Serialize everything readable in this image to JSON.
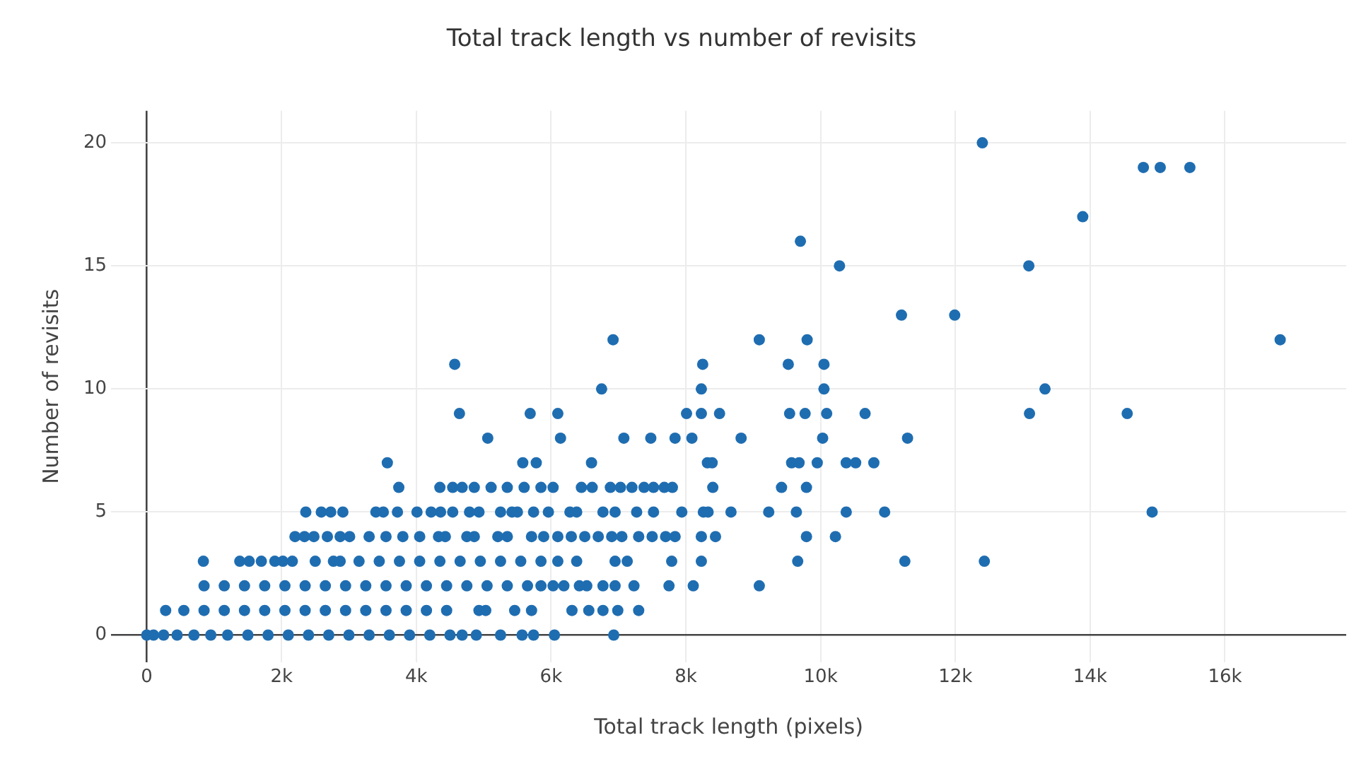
{
  "chart_data": {
    "type": "scatter",
    "title": "Total track length vs number of revisits",
    "xlabel": "Total track length (pixels)",
    "ylabel": "Number of revisits",
    "xlim": [
      -530,
      17800
    ],
    "ylim": [
      -1.1,
      21.3
    ],
    "xticks": [
      0,
      {
        "value": 2000,
        "label": "2k"
      },
      {
        "value": 4000,
        "label": "4k"
      },
      {
        "value": 6000,
        "label": "6k"
      },
      {
        "value": 8000,
        "label": "8k"
      },
      {
        "value": 10000,
        "label": "10k"
      },
      {
        "value": 12000,
        "label": "12k"
      },
      {
        "value": 14000,
        "label": "14k"
      },
      {
        "value": 16000,
        "label": "16k"
      }
    ],
    "yticks": [
      0,
      5,
      10,
      15,
      20
    ],
    "grid": true,
    "legend": false,
    "marker": "circle",
    "series": [
      {
        "color": "#1f6db1",
        "x": [
          0,
          100,
          250,
          450,
          700,
          950,
          1200,
          1500,
          1800,
          2100,
          2400,
          2700,
          3000,
          3300,
          3600,
          3900,
          4200,
          4500,
          4680,
          4890,
          5250,
          5570,
          5740,
          6050,
          6930
        ],
        "values": [
          0,
          0,
          0,
          0,
          0,
          0,
          0,
          0,
          0,
          0,
          0,
          0,
          0,
          0,
          0,
          0,
          0,
          0,
          0,
          0,
          0,
          0,
          0,
          0,
          0
        ]
      },
      {
        "color": "#1f6db1",
        "x": [
          280,
          550,
          850,
          1150,
          1450,
          1750,
          2050,
          2350,
          2650,
          2950,
          3250,
          3550,
          3850,
          4150,
          4450,
          4930,
          5030,
          5460,
          5710,
          6310,
          6560,
          6770,
          6990,
          7300
        ],
        "values": [
          1,
          1,
          1,
          1,
          1,
          1,
          1,
          1,
          1,
          1,
          1,
          1,
          1,
          1,
          1,
          1,
          1,
          1,
          1,
          1,
          1,
          1,
          1,
          1
        ]
      },
      {
        "color": "#1f6db1",
        "x": [
          850,
          1150,
          1450,
          1750,
          2050,
          2350,
          2650,
          2950,
          3250,
          3550,
          3850,
          4150,
          4450,
          4750,
          5050,
          5350,
          5650,
          5850,
          6030,
          6190,
          6420,
          6530,
          6770,
          6950,
          7230,
          7750,
          8110,
          9090
        ],
        "values": [
          2,
          2,
          2,
          2,
          2,
          2,
          2,
          2,
          2,
          2,
          2,
          2,
          2,
          2,
          2,
          2,
          2,
          2,
          2,
          2,
          2,
          2,
          2,
          2,
          2,
          2,
          2,
          2
        ]
      },
      {
        "color": "#1f6db1",
        "x": [
          840,
          1380,
          1520,
          1700,
          1900,
          2020,
          2160,
          2500,
          2770,
          2870,
          3150,
          3450,
          3750,
          4050,
          4350,
          4650,
          4950,
          5250,
          5550,
          5850,
          6100,
          6380,
          6950,
          7130,
          7790,
          8230,
          9660,
          11250,
          12430
        ],
        "values": [
          3,
          3,
          3,
          3,
          3,
          3,
          3,
          3,
          3,
          3,
          3,
          3,
          3,
          3,
          3,
          3,
          3,
          3,
          3,
          3,
          3,
          3,
          3,
          3,
          3,
          3,
          3,
          3,
          3
        ]
      },
      {
        "color": "#1f6db1",
        "x": [
          2200,
          2340,
          2480,
          2680,
          2870,
          3010,
          3300,
          3550,
          3800,
          4050,
          4330,
          4430,
          4750,
          4860,
          5210,
          5350,
          5710,
          5890,
          6100,
          6300,
          6500,
          6700,
          6900,
          7050,
          7300,
          7500,
          7700,
          7840,
          8230,
          8440,
          9790,
          10220
        ],
        "values": [
          4,
          4,
          4,
          4,
          4,
          4,
          4,
          4,
          4,
          4,
          4,
          4,
          4,
          4,
          4,
          4,
          4,
          4,
          4,
          4,
          4,
          4,
          4,
          4,
          4,
          4,
          4,
          4,
          4,
          4,
          4,
          4
        ]
      },
      {
        "color": "#1f6db1",
        "x": [
          2360,
          2590,
          2730,
          2910,
          3400,
          3510,
          3720,
          4010,
          4220,
          4360,
          4540,
          4790,
          4930,
          5250,
          5420,
          5500,
          5740,
          5960,
          6280,
          6380,
          6770,
          6950,
          7270,
          7520,
          7940,
          8260,
          8330,
          8670,
          9230,
          9640,
          10380,
          10950,
          14920
        ],
        "values": [
          5,
          5,
          5,
          5,
          5,
          5,
          5,
          5,
          5,
          5,
          5,
          5,
          5,
          5,
          5,
          5,
          5,
          5,
          5,
          5,
          5,
          5,
          5,
          5,
          5,
          5,
          5,
          5,
          5,
          5,
          5,
          5,
          5
        ]
      },
      {
        "color": "#1f6db1",
        "x": [
          3740,
          4350,
          4540,
          4680,
          4860,
          5110,
          5350,
          5600,
          5850,
          6030,
          6450,
          6610,
          6880,
          7030,
          7200,
          7380,
          7520,
          7680,
          7800,
          8400,
          9420,
          9790
        ],
        "values": [
          6,
          6,
          6,
          6,
          6,
          6,
          6,
          6,
          6,
          6,
          6,
          6,
          6,
          6,
          6,
          6,
          6,
          6,
          6,
          6,
          6,
          6
        ]
      },
      {
        "color": "#1f6db1",
        "x": [
          3570,
          5580,
          5780,
          6600,
          8320,
          8390,
          9570,
          9680,
          9950,
          10380,
          10520,
          10790
        ],
        "values": [
          7,
          7,
          7,
          7,
          7,
          7,
          7,
          7,
          7,
          7,
          7,
          7
        ]
      },
      {
        "color": "#1f6db1",
        "x": [
          5060,
          6140,
          7080,
          7480,
          7840,
          8090,
          8820,
          10030,
          11290
        ],
        "values": [
          8,
          8,
          8,
          8,
          8,
          8,
          8,
          8,
          8
        ]
      },
      {
        "color": "#1f6db1",
        "x": [
          4640,
          5690,
          6100,
          8010,
          8230,
          8500,
          9540,
          9770,
          10090,
          10660,
          13100,
          14550
        ],
        "values": [
          9,
          9,
          9,
          9,
          9,
          9,
          9,
          9,
          9,
          9,
          9,
          9
        ]
      },
      {
        "color": "#1f6db1",
        "x": [
          6750,
          8230,
          10050,
          13330
        ],
        "values": [
          10,
          10,
          10,
          10
        ]
      },
      {
        "color": "#1f6db1",
        "x": [
          4570,
          8250,
          9520,
          10050
        ],
        "values": [
          11,
          11,
          11,
          11
        ]
      },
      {
        "color": "#1f6db1",
        "x": [
          6920,
          9090,
          9800,
          16820
        ],
        "values": [
          12,
          12,
          12,
          12
        ]
      },
      {
        "color": "#1f6db1",
        "x": [
          11200,
          11990,
          10280,
          13090,
          9700,
          13890,
          14790,
          15040,
          15480,
          12400
        ],
        "values": [
          13,
          13,
          15,
          15,
          16,
          17,
          19,
          19,
          19,
          20
        ]
      }
    ]
  }
}
